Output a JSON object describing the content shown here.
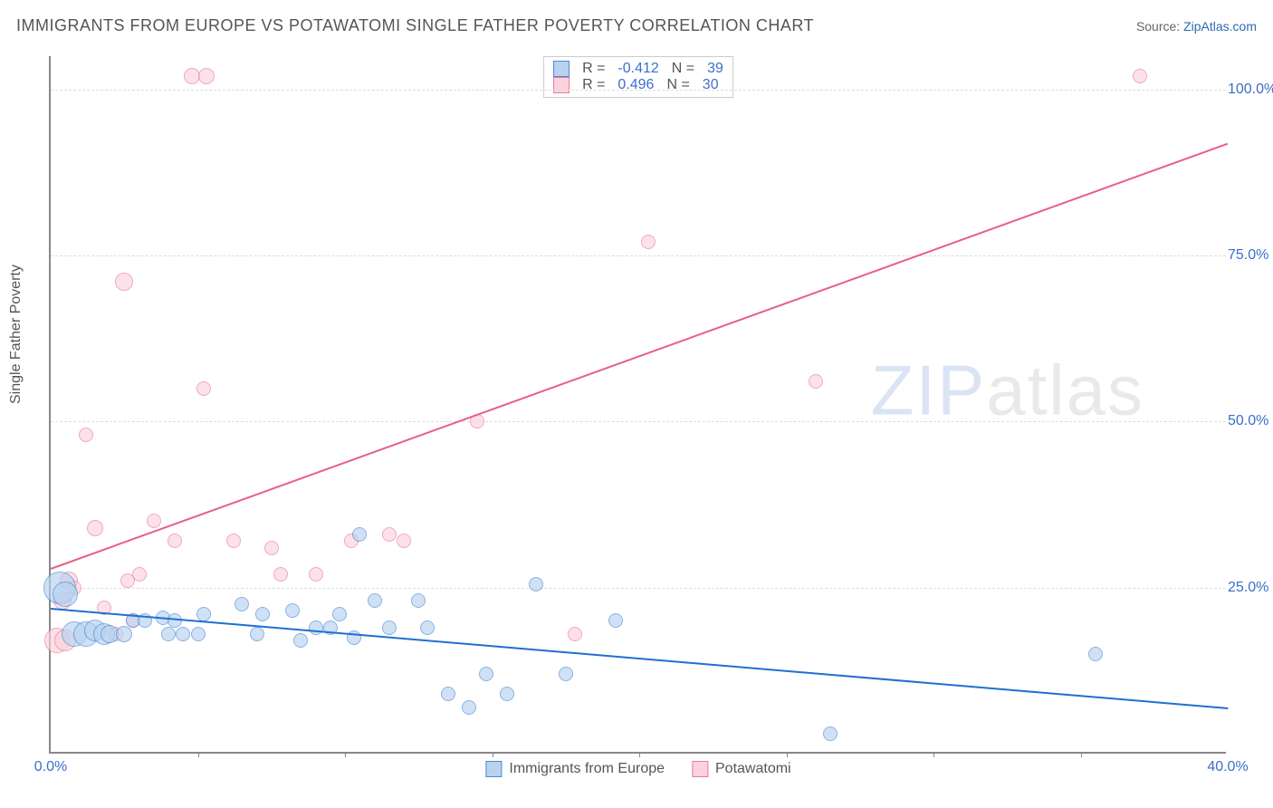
{
  "title": "IMMIGRANTS FROM EUROPE VS POTAWATOMI SINGLE FATHER POVERTY CORRELATION CHART",
  "source_prefix": "Source: ",
  "source_link": "ZipAtlas.com",
  "y_axis_label": "Single Father Poverty",
  "watermark_a": "ZIP",
  "watermark_b": "atlas",
  "chart": {
    "type": "scatter",
    "xlim": [
      0,
      40
    ],
    "ylim": [
      0,
      105
    ],
    "x_ticks": [
      0.0,
      40.0
    ],
    "x_minor_ticks": [
      5,
      10,
      15,
      20,
      25,
      30,
      35
    ],
    "y_ticks": [
      25.0,
      50.0,
      75.0,
      100.0
    ],
    "x_tick_suffix": "%",
    "y_tick_suffix": "%",
    "grid_color": "#dddddd",
    "axis_color": "#888888",
    "background_color": "#ffffff",
    "tick_label_color": "#3b6fc9",
    "axis_label_color": "#555555",
    "title_fontsize": 18,
    "tick_fontsize": 16,
    "series": [
      {
        "name": "Immigrants from Europe",
        "fill": "#b8d2f0",
        "stroke": "#4a8ad4",
        "fill_opacity": 0.65,
        "R": "-0.412",
        "N": "39",
        "trend": {
          "x1": 0,
          "y1": 22,
          "x2": 40,
          "y2": 7,
          "color": "#1f6fd1",
          "width": 2
        },
        "points": [
          {
            "x": 0.3,
            "y": 25,
            "r": 18
          },
          {
            "x": 0.5,
            "y": 24,
            "r": 14
          },
          {
            "x": 0.8,
            "y": 18,
            "r": 14
          },
          {
            "x": 1.2,
            "y": 18,
            "r": 14
          },
          {
            "x": 1.5,
            "y": 18.5,
            "r": 12
          },
          {
            "x": 1.8,
            "y": 18,
            "r": 12
          },
          {
            "x": 2.0,
            "y": 18,
            "r": 10
          },
          {
            "x": 2.5,
            "y": 18,
            "r": 9
          },
          {
            "x": 2.8,
            "y": 20,
            "r": 8
          },
          {
            "x": 3.2,
            "y": 20,
            "r": 8
          },
          {
            "x": 3.8,
            "y": 20.5,
            "r": 8
          },
          {
            "x": 4.0,
            "y": 18,
            "r": 8
          },
          {
            "x": 4.2,
            "y": 20,
            "r": 8
          },
          {
            "x": 4.5,
            "y": 18,
            "r": 8
          },
          {
            "x": 5.0,
            "y": 18,
            "r": 8
          },
          {
            "x": 5.2,
            "y": 21,
            "r": 8
          },
          {
            "x": 6.5,
            "y": 22.5,
            "r": 8
          },
          {
            "x": 7.2,
            "y": 21,
            "r": 8
          },
          {
            "x": 7.0,
            "y": 18,
            "r": 8
          },
          {
            "x": 8.2,
            "y": 21.5,
            "r": 8
          },
          {
            "x": 8.5,
            "y": 17,
            "r": 8
          },
          {
            "x": 9.0,
            "y": 19,
            "r": 8
          },
          {
            "x": 9.8,
            "y": 21,
            "r": 8
          },
          {
            "x": 9.5,
            "y": 19,
            "r": 8
          },
          {
            "x": 10.3,
            "y": 17.5,
            "r": 8
          },
          {
            "x": 10.5,
            "y": 33,
            "r": 8
          },
          {
            "x": 11.0,
            "y": 23,
            "r": 8
          },
          {
            "x": 11.5,
            "y": 19,
            "r": 8
          },
          {
            "x": 12.5,
            "y": 23,
            "r": 8
          },
          {
            "x": 12.8,
            "y": 19,
            "r": 8
          },
          {
            "x": 13.5,
            "y": 9,
            "r": 8
          },
          {
            "x": 14.2,
            "y": 7,
            "r": 8
          },
          {
            "x": 14.8,
            "y": 12,
            "r": 8
          },
          {
            "x": 15.5,
            "y": 9,
            "r": 8
          },
          {
            "x": 16.5,
            "y": 25.5,
            "r": 8
          },
          {
            "x": 17.5,
            "y": 12,
            "r": 8
          },
          {
            "x": 19.2,
            "y": 20,
            "r": 8
          },
          {
            "x": 26.5,
            "y": 3,
            "r": 8
          },
          {
            "x": 35.5,
            "y": 15,
            "r": 8
          }
        ]
      },
      {
        "name": "Potawatomi",
        "fill": "#fbd3dd",
        "stroke": "#e97a9b",
        "fill_opacity": 0.65,
        "R": "0.496",
        "N": "30",
        "trend": {
          "x1": 0,
          "y1": 28,
          "x2": 40,
          "y2": 92,
          "color": "#e85f88",
          "width": 2
        },
        "points": [
          {
            "x": 0.2,
            "y": 17,
            "r": 14
          },
          {
            "x": 0.5,
            "y": 17,
            "r": 12
          },
          {
            "x": 0.4,
            "y": 23,
            "r": 10
          },
          {
            "x": 0.6,
            "y": 26,
            "r": 10
          },
          {
            "x": 0.8,
            "y": 25,
            "r": 8
          },
          {
            "x": 1.2,
            "y": 48,
            "r": 8
          },
          {
            "x": 1.5,
            "y": 34,
            "r": 9
          },
          {
            "x": 1.8,
            "y": 22,
            "r": 8
          },
          {
            "x": 2.2,
            "y": 18,
            "r": 8
          },
          {
            "x": 2.5,
            "y": 71,
            "r": 10
          },
          {
            "x": 2.6,
            "y": 26,
            "r": 8
          },
          {
            "x": 2.8,
            "y": 20,
            "r": 8
          },
          {
            "x": 3.0,
            "y": 27,
            "r": 8
          },
          {
            "x": 3.5,
            "y": 35,
            "r": 8
          },
          {
            "x": 4.2,
            "y": 32,
            "r": 8
          },
          {
            "x": 4.8,
            "y": 102,
            "r": 9
          },
          {
            "x": 5.3,
            "y": 102,
            "r": 9
          },
          {
            "x": 5.2,
            "y": 55,
            "r": 8
          },
          {
            "x": 6.2,
            "y": 32,
            "r": 8
          },
          {
            "x": 7.5,
            "y": 31,
            "r": 8
          },
          {
            "x": 7.8,
            "y": 27,
            "r": 8
          },
          {
            "x": 9.0,
            "y": 27,
            "r": 8
          },
          {
            "x": 10.2,
            "y": 32,
            "r": 8
          },
          {
            "x": 11.5,
            "y": 33,
            "r": 8
          },
          {
            "x": 12.0,
            "y": 32,
            "r": 8
          },
          {
            "x": 14.5,
            "y": 50,
            "r": 8
          },
          {
            "x": 17.8,
            "y": 18,
            "r": 8
          },
          {
            "x": 20.3,
            "y": 77,
            "r": 8
          },
          {
            "x": 26.0,
            "y": 56,
            "r": 8
          },
          {
            "x": 37.0,
            "y": 102,
            "r": 8
          }
        ]
      }
    ]
  },
  "legend_top": {
    "r_label": "R =",
    "n_label": "N ="
  }
}
